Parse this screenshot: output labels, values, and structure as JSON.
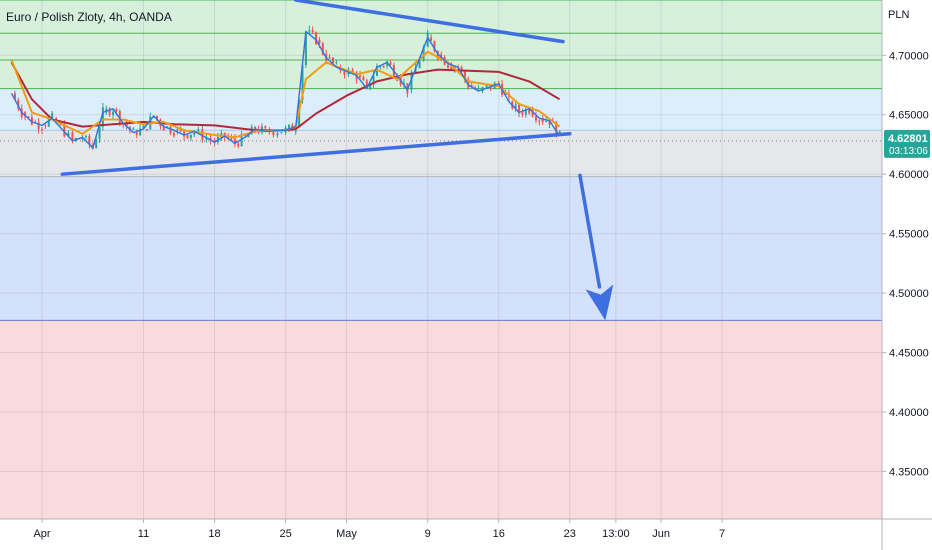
{
  "chart_data": {
    "type": "line",
    "title": "Euro / Polish Zloty, 4h, OANDA",
    "currency": "PLN",
    "ylim": [
      4.31,
      4.7465
    ],
    "y_ticks": [
      "4.70000",
      "4.65000",
      "4.60000",
      "4.55000",
      "4.50000",
      "4.45000",
      "4.40000",
      "4.35000"
    ],
    "y_tick_values": [
      4.7,
      4.65,
      4.6,
      4.55,
      4.5,
      4.45,
      4.4,
      4.35
    ],
    "x_ticks": [
      "Apr",
      "11",
      "18",
      "25",
      "May",
      "9",
      "16",
      "23",
      "13:00",
      "Jun",
      "7"
    ],
    "x_tick_dates": [
      "2021-04-01",
      "2021-04-11",
      "2021-04-18",
      "2021-04-25",
      "2021-05-01",
      "2021-05-09",
      "2021-05-16",
      "2021-05-23",
      "2021-05-27 13:00",
      "2021-06-01",
      "2021-06-07"
    ],
    "last_price": "4.62801",
    "countdown": "03:13:06",
    "grid": true,
    "zones": [
      {
        "name": "green",
        "from": 4.672,
        "to": 4.7465,
        "color": "#d6f0dc",
        "line_color": "#4caf50",
        "lines": [
          4.7465,
          4.7185,
          4.696,
          4.672
        ]
      },
      {
        "name": "lightblue",
        "from": 4.637,
        "to": 4.672,
        "color": "#ddeefb",
        "line_color": "#9ec9ef",
        "lines": [
          4.637
        ]
      },
      {
        "name": "gray",
        "from": 4.598,
        "to": 4.637,
        "color": "#e6e7ea",
        "line_color": "#b2b5be",
        "lines": [
          4.598
        ]
      },
      {
        "name": "blue",
        "from": 4.477,
        "to": 4.598,
        "color": "#d4e1fb",
        "line_color": "#5b7fd6",
        "lines": [
          4.477
        ]
      },
      {
        "name": "red",
        "from": 4.31,
        "to": 4.477,
        "color": "#f9dadd",
        "line_color": "#f4b6bd",
        "lines": []
      }
    ],
    "trendlines": [
      {
        "name": "upper-resistance",
        "points": [
          [
            "2021-04-26",
            4.7465
          ],
          [
            "2021-05-22 08:00",
            4.7115
          ]
        ],
        "color": "#3d6fe0"
      },
      {
        "name": "lower-support",
        "points": [
          [
            "2021-04-03",
            4.6
          ],
          [
            "2021-05-23",
            4.634
          ]
        ],
        "color": "#3d6fe0"
      }
    ],
    "target_arrow": {
      "from": [
        "2021-05-24",
        4.599
      ],
      "to": [
        "2021-05-26 12:00",
        4.477
      ],
      "color": "#3d6fe0"
    },
    "series": [
      {
        "name": "",
        "color": "#2f74e6",
        "x": [
          "2021-03-29",
          "2021-03-30",
          "2021-03-31",
          "2021-04-01",
          "2021-04-02",
          "2021-04-04",
          "2021-04-05",
          "2021-04-06",
          "2021-04-07",
          "2021-04-08",
          "2021-04-09",
          "2021-04-10",
          "2021-04-11",
          "2021-04-12",
          "2021-04-13",
          "2021-04-14",
          "2021-04-15",
          "2021-04-16",
          "2021-04-18",
          "2021-04-19",
          "2021-04-20",
          "2021-04-21",
          "2021-04-22",
          "2021-04-23",
          "2021-04-25",
          "2021-04-26",
          "2021-04-27",
          "2021-04-28",
          "2021-04-29",
          "2021-04-30",
          "2021-05-02",
          "2021-05-03",
          "2021-05-04",
          "2021-05-05",
          "2021-05-06",
          "2021-05-07",
          "2021-05-09",
          "2021-05-10",
          "2021-05-11",
          "2021-05-12",
          "2021-05-13",
          "2021-05-14",
          "2021-05-16",
          "2021-05-17",
          "2021-05-18",
          "2021-05-19",
          "2021-05-20",
          "2021-05-21",
          "2021-05-22"
        ],
        "values": [
          4.668,
          4.652,
          4.644,
          4.641,
          4.647,
          4.628,
          4.631,
          4.622,
          4.652,
          4.655,
          4.643,
          4.635,
          4.638,
          4.649,
          4.64,
          4.637,
          4.633,
          4.636,
          4.627,
          4.632,
          4.626,
          4.631,
          4.638,
          4.636,
          4.637,
          4.64,
          4.72,
          4.713,
          4.698,
          4.69,
          4.683,
          4.672,
          4.69,
          4.694,
          4.683,
          4.671,
          4.715,
          4.701,
          4.693,
          4.69,
          4.675,
          4.67,
          4.676,
          4.661,
          4.652,
          4.655,
          4.647,
          4.645,
          4.632
        ]
      },
      {
        "name": "",
        "color": "#f39c12",
        "x": [
          "2021-03-29",
          "2021-03-31",
          "2021-04-02",
          "2021-04-05",
          "2021-04-07",
          "2021-04-09",
          "2021-04-11",
          "2021-04-13",
          "2021-04-15",
          "2021-04-18",
          "2021-04-20",
          "2021-04-22",
          "2021-04-25",
          "2021-04-26",
          "2021-04-27",
          "2021-04-29",
          "2021-05-02",
          "2021-05-04",
          "2021-05-06",
          "2021-05-09",
          "2021-05-11",
          "2021-05-13",
          "2021-05-16",
          "2021-05-18",
          "2021-05-20",
          "2021-05-22"
        ],
        "values": [
          4.696,
          4.652,
          4.646,
          4.634,
          4.646,
          4.646,
          4.642,
          4.644,
          4.637,
          4.633,
          4.631,
          4.636,
          4.637,
          4.64,
          4.68,
          4.694,
          4.684,
          4.688,
          4.68,
          4.703,
          4.694,
          4.678,
          4.674,
          4.659,
          4.653,
          4.64
        ]
      },
      {
        "name": "",
        "color": "#b2283a",
        "x": [
          "2021-03-29",
          "2021-03-31",
          "2021-04-02",
          "2021-04-05",
          "2021-04-08",
          "2021-04-11",
          "2021-04-14",
          "2021-04-18",
          "2021-04-22",
          "2021-04-25",
          "2021-04-26",
          "2021-04-28",
          "2021-05-01",
          "2021-05-04",
          "2021-05-07",
          "2021-05-10",
          "2021-05-13",
          "2021-05-16",
          "2021-05-19",
          "2021-05-22"
        ],
        "values": [
          4.694,
          4.663,
          4.646,
          4.64,
          4.642,
          4.644,
          4.642,
          4.641,
          4.637,
          4.637,
          4.638,
          4.651,
          4.666,
          4.678,
          4.684,
          4.688,
          4.687,
          4.686,
          4.678,
          4.663
        ]
      }
    ]
  }
}
